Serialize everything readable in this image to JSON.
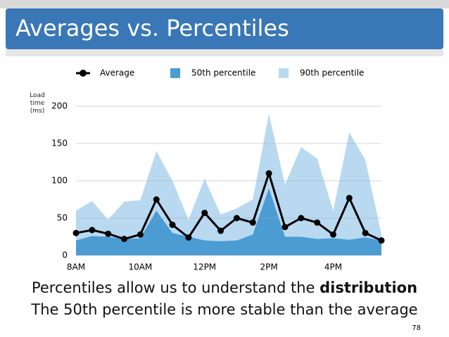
{
  "slide_title": "Averages  vs.  Percentiles",
  "chart_data": {
    "type": "line",
    "ylabel": "Load time (ms)",
    "categories": [
      "8AM",
      null,
      null,
      null,
      "10AM",
      null,
      null,
      null,
      "12PM",
      null,
      null,
      null,
      "2PM",
      null,
      null,
      null,
      "4PM",
      null,
      null,
      null
    ],
    "series": [
      {
        "name": "Average",
        "type": "line",
        "color": "#000000",
        "values": [
          30,
          34,
          29,
          22,
          28,
          75,
          41,
          24,
          57,
          33,
          50,
          44,
          110,
          38,
          50,
          44,
          28,
          77,
          30,
          20
        ]
      },
      {
        "name": "50th percentile",
        "type": "area",
        "color": "#4b9cd3",
        "values": [
          20,
          26,
          25,
          22,
          23,
          60,
          30,
          25,
          20,
          19,
          20,
          28,
          90,
          25,
          25,
          22,
          23,
          21,
          24,
          20
        ]
      },
      {
        "name": "90th percentile",
        "type": "area",
        "color": "#b9d9f1",
        "values": [
          60,
          73,
          48,
          72,
          74,
          140,
          100,
          48,
          103,
          55,
          63,
          75,
          190,
          95,
          145,
          130,
          60,
          165,
          128,
          28
        ]
      }
    ],
    "ylim": [
      0,
      200
    ],
    "yticks": [
      0,
      50,
      100,
      150,
      200
    ],
    "grid": true
  },
  "captions": [
    "Percentiles allow us to understand the ",
    "distribution",
    "The 50th percentile is more stable than the average"
  ],
  "page_number": "78"
}
